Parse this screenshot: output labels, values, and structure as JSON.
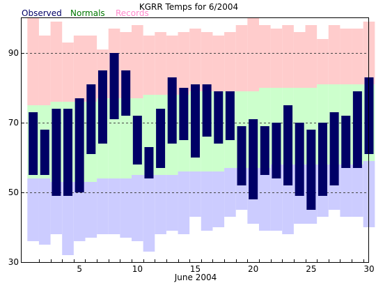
{
  "chart_data": {
    "type": "bar",
    "title": "KGRR Temps for 6/2004",
    "xlabel": "June 2004",
    "ylabel": "",
    "legend": {
      "placement": "top-left",
      "items": [
        "Observed",
        "Normals",
        "Records"
      ]
    },
    "colors": {
      "observed": "#000066",
      "normals": "#ccffcc",
      "records_high": "#ffcccc",
      "records_low": "#ccccff",
      "legend_observed": "#000066",
      "legend_normals": "#007700",
      "legend_records": "#ff88cc",
      "grid": "#444444"
    },
    "x": [
      1,
      2,
      3,
      4,
      5,
      6,
      7,
      8,
      9,
      10,
      11,
      12,
      13,
      14,
      15,
      16,
      17,
      18,
      19,
      20,
      21,
      22,
      23,
      24,
      25,
      26,
      27,
      28,
      29,
      30
    ],
    "xlim": [
      0.5,
      30.5
    ],
    "ylim": [
      30,
      100
    ],
    "x_ticks": [
      5,
      10,
      15,
      20,
      25,
      30
    ],
    "y_ticks": [
      30,
      50,
      70,
      90
    ],
    "grid_y": [
      50,
      70,
      90
    ],
    "series": [
      {
        "name": "Observed",
        "high": [
          73,
          68,
          74,
          74,
          77,
          81,
          85,
          90,
          85,
          72,
          63,
          74,
          83,
          80,
          81,
          81,
          79,
          79,
          69,
          71,
          69,
          70,
          75,
          70,
          68,
          70,
          73,
          72,
          79,
          83
        ],
        "low": [
          55,
          55,
          49,
          49,
          50,
          61,
          64,
          71,
          72,
          58,
          54,
          57,
          64,
          65,
          60,
          66,
          64,
          65,
          52,
          48,
          55,
          54,
          52,
          49,
          45,
          49,
          52,
          57,
          57,
          61
        ]
      },
      {
        "name": "Normals",
        "high": [
          75,
          75,
          76,
          76,
          76,
          76,
          77,
          77,
          77,
          77,
          78,
          78,
          78,
          78,
          79,
          79,
          79,
          79,
          79,
          79,
          80,
          80,
          80,
          80,
          80,
          81,
          81,
          81,
          81,
          81
        ],
        "low": [
          54,
          54,
          53,
          53,
          53,
          53,
          54,
          54,
          54,
          55,
          55,
          55,
          55,
          56,
          56,
          56,
          56,
          57,
          57,
          57,
          57,
          58,
          58,
          58,
          58,
          58,
          58,
          58,
          58,
          59
        ]
      },
      {
        "name": "Records",
        "high": [
          102,
          95,
          99,
          93,
          95,
          95,
          91,
          97,
          96,
          98,
          95,
          96,
          95,
          96,
          97,
          96,
          95,
          96,
          98,
          102,
          98,
          97,
          98,
          96,
          98,
          94,
          98,
          97,
          97,
          99
        ],
        "low": [
          36,
          35,
          38,
          32,
          36,
          37,
          38,
          38,
          37,
          36,
          33,
          38,
          39,
          38,
          43,
          39,
          40,
          43,
          45,
          41,
          39,
          39,
          38,
          41,
          41,
          43,
          45,
          43,
          43,
          40
        ]
      }
    ]
  }
}
